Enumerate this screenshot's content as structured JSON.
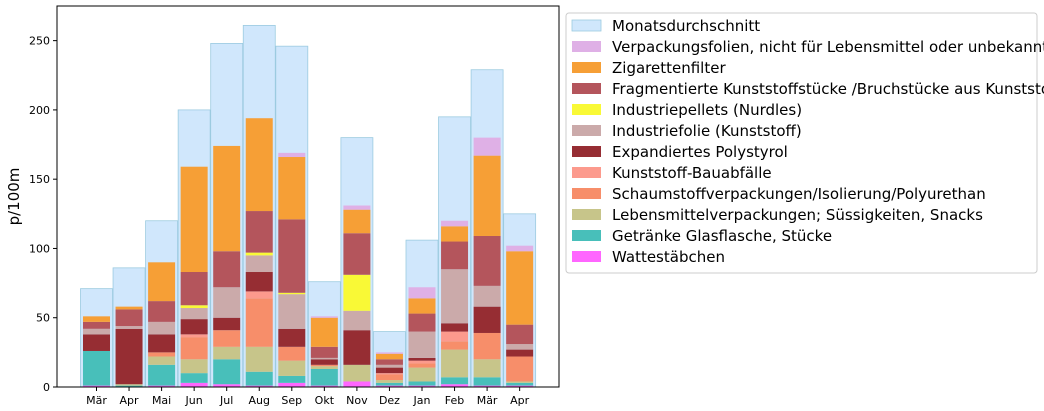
{
  "chart_data": {
    "type": "bar",
    "stacked": true,
    "title": "",
    "xlabel": "",
    "ylabel": "p/100m",
    "ylim": [
      0,
      275
    ],
    "yticks": [
      0,
      50,
      100,
      150,
      200,
      250
    ],
    "legend_position": "outside-top-right",
    "categories": [
      "Mär",
      "Apr",
      "Mai",
      "Jun",
      "Jul",
      "Aug",
      "Sep",
      "Okt",
      "Nov",
      "Dez",
      "Jan",
      "Feb",
      "Mär",
      "Apr"
    ],
    "average": {
      "name": "Monatsdurchschnitt",
      "color": "#d0e7fc",
      "edge": "#9ccbe0",
      "values": [
        71,
        86,
        120,
        200,
        248,
        261,
        246,
        76,
        180,
        40,
        106,
        195,
        229,
        125
      ]
    },
    "series": [
      {
        "name": "Wattestäbchen",
        "color": "#ff66ff",
        "values": [
          1,
          0,
          1,
          3,
          2,
          1,
          3,
          1,
          4,
          1,
          1,
          2,
          1,
          1
        ]
      },
      {
        "name": "Getränke Glasflasche, Stücke",
        "color": "#48bfba",
        "values": [
          25,
          1,
          15,
          7,
          18,
          10,
          5,
          12,
          0,
          2,
          3,
          5,
          6,
          2
        ]
      },
      {
        "name": "Lebensmittelverpackungen; Süssigkeiten, Snacks",
        "color": "#c7c58a",
        "values": [
          0,
          1,
          6,
          10,
          9,
          18,
          11,
          2,
          12,
          2,
          10,
          20,
          13,
          1
        ]
      },
      {
        "name": "Schaumstoffverpackungen/Isolierung/Polyurethan",
        "color": "#f78e6a",
        "values": [
          0,
          0,
          3,
          16,
          12,
          35,
          10,
          1,
          0,
          4,
          3,
          6,
          19,
          18
        ]
      },
      {
        "name": "Kunststoff-Bauabfälle",
        "color": "#fc9a8d",
        "values": [
          0,
          0,
          0,
          2,
          0,
          5,
          0,
          0,
          0,
          1,
          2,
          7,
          0,
          0
        ]
      },
      {
        "name": "Expandiertes Polystyrol",
        "color": "#962d33",
        "values": [
          12,
          40,
          13,
          11,
          9,
          14,
          13,
          4,
          25,
          4,
          2,
          6,
          19,
          5
        ]
      },
      {
        "name": "Industriefolie (Kunststoff)",
        "color": "#cbaaaa",
        "values": [
          4,
          2,
          9,
          8,
          22,
          12,
          25,
          1,
          14,
          2,
          19,
          39,
          15,
          4
        ]
      },
      {
        "name": "Industriepellets (Nurdles)",
        "color": "#f9f936",
        "values": [
          0,
          0,
          0,
          2,
          0,
          2,
          1,
          0,
          26,
          0,
          0,
          0,
          0,
          0
        ]
      },
      {
        "name": "Fragmentierte Kunststoffstücke /Bruchstücke aus Kunststoff",
        "color": "#b4555c",
        "values": [
          5,
          12,
          15,
          24,
          26,
          30,
          53,
          8,
          30,
          4,
          13,
          20,
          36,
          14
        ]
      },
      {
        "name": "Zigarettenfilter",
        "color": "#f69f36",
        "values": [
          4,
          2,
          28,
          76,
          76,
          67,
          45,
          21,
          17,
          4,
          11,
          11,
          58,
          53
        ]
      },
      {
        "name": "Verpackungsfolien, nicht für Lebensmittel oder unbekannt",
        "color": "#dfb0e6",
        "values": [
          0,
          0,
          0,
          0,
          0,
          0,
          3,
          1,
          3,
          1,
          8,
          4,
          13,
          4
        ]
      }
    ]
  }
}
